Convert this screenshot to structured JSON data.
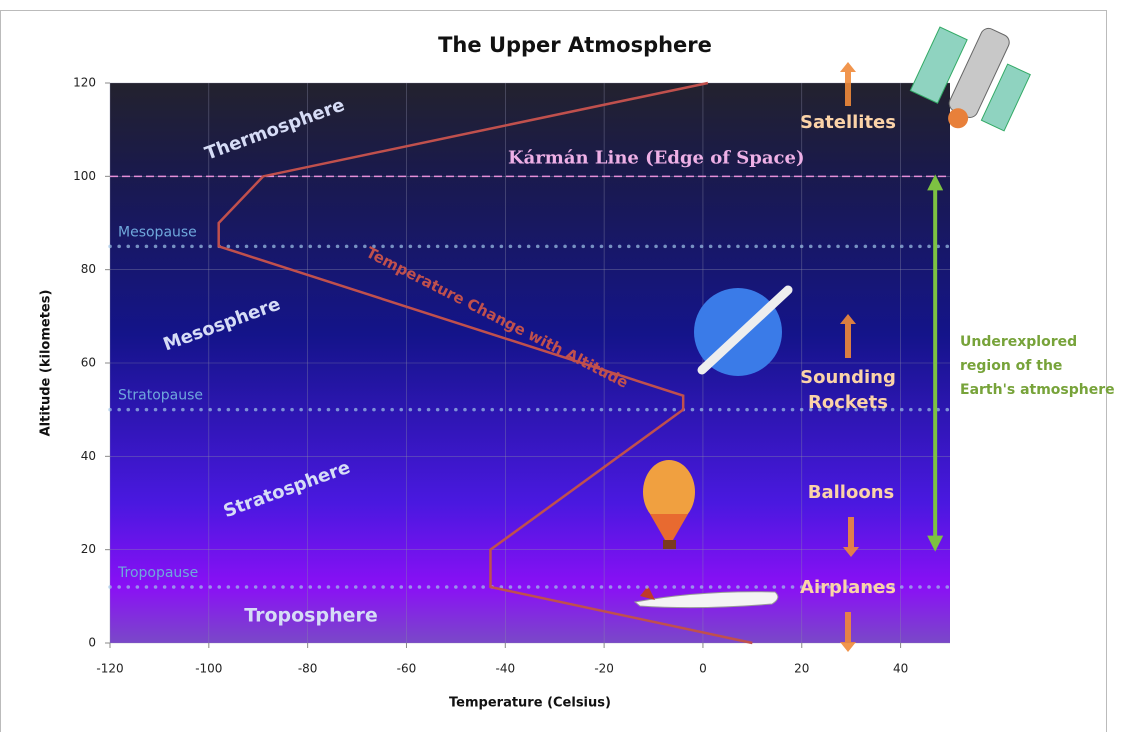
{
  "chart_data": {
    "type": "line",
    "title": "The Upper Atmosphere",
    "x_label": "Temperature (Celsius)",
    "y_label": "Altitude (kilometes)",
    "xlim": [
      -120,
      50
    ],
    "ylim": [
      0,
      120
    ],
    "xticks": [
      -120,
      -100,
      -80,
      -60,
      -40,
      -20,
      0,
      20,
      40
    ],
    "yticks": [
      0,
      20,
      40,
      60,
      80,
      100,
      120
    ],
    "grid": true,
    "series": [
      {
        "name": "Temperature Change with Altitude",
        "color": "#c0504d",
        "x": [
          10,
          -43,
          -43,
          -4,
          -4,
          -98,
          -98,
          -89,
          1
        ],
        "values": [
          0,
          12,
          20,
          50,
          53,
          85,
          90,
          100,
          120
        ]
      }
    ],
    "reference_lines": [
      {
        "label": "Tropopause",
        "value": 12,
        "color": "#9fc5e8"
      },
      {
        "label": "Stratopause",
        "value": 50,
        "color": "#9fc5e8"
      },
      {
        "label": "Mesopause",
        "value": 85,
        "color": "#9fc5e8"
      },
      {
        "label": "Kármán Line (Edge of Space)",
        "value": 100,
        "color": "#e58fd8"
      }
    ],
    "layers": [
      "Troposphere",
      "Stratosphere",
      "Mesosphere",
      "Thermosphere"
    ],
    "vehicles": [
      {
        "label": [
          "Airplanes"
        ]
      },
      {
        "label": [
          "Balloons"
        ]
      },
      {
        "label": [
          "Sounding",
          "Rockets"
        ]
      },
      {
        "label": [
          "Satellites"
        ]
      }
    ],
    "range_arrow": {
      "label": [
        "Underexplored",
        "region of the",
        "Earth's atmosphere"
      ],
      "from": 20,
      "to": 100,
      "color": "#7dc242"
    }
  }
}
